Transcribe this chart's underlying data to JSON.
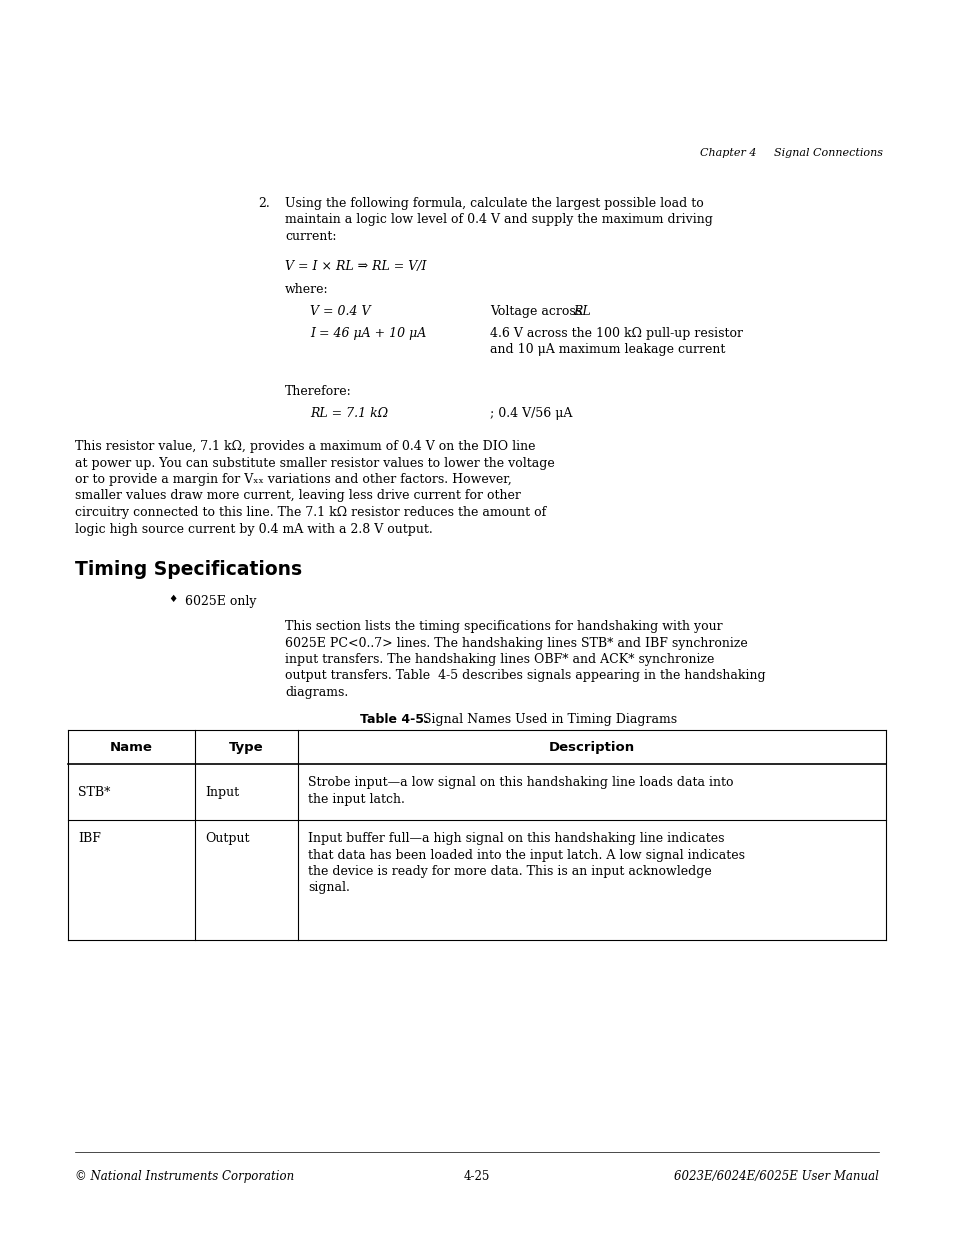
{
  "bg_color": "#ffffff",
  "page_width": 9.54,
  "page_height": 12.35,
  "dpi": 100,
  "header_text": "Chapter 4     Signal Connections",
  "footer_left": "© National Instruments Corporation",
  "footer_center": "4-25",
  "footer_right": "6023E/6024E/6025E User Manual",
  "item2_lines": [
    "Using the following formula, calculate the largest possible load to",
    "maintain a logic low level of 0.4 V and supply the maximum driving",
    "current:"
  ],
  "formula_text": "V = I × RL ⇒ RL = V/I",
  "where_text": "where:",
  "var1_label": "V = 0.4 V",
  "var1_desc": "Voltage across RL",
  "var1_desc_italic": "RL",
  "var2_label": "I = 46 μA + 10 μA",
  "var2_desc1": "4.6 V across the 100 kΩ pull-up resistor",
  "var2_desc2": "and 10 μA maximum leakage current",
  "therefore_text": "Therefore:",
  "rl_label": "RL = 7.1 kΩ",
  "rl_desc": "; 0.4 V/56 μA",
  "para2_lines": [
    "This resistor value, 7.1 kΩ, provides a maximum of 0.4 V on the DIO line",
    "at power up. You can substitute smaller resistor values to lower the voltage",
    "or to provide a margin for Vₓₓ variations and other factors. However,",
    "smaller values draw more current, leaving less drive current for other",
    "circuitry connected to this line. The 7.1 kΩ resistor reduces the amount of",
    "logic high source current by 0.4 mA with a 2.8 V output."
  ],
  "section_heading": "Timing Specifications",
  "bullet_text": "6025E only",
  "para1_lines": [
    "This section lists the timing specifications for handshaking with your",
    "6025E PC<0..7> lines. The handshaking lines STB* and IBF synchronize",
    "input transfers. The handshaking lines OBF* and ACK* synchronize",
    "output transfers. Table  4-5 describes signals appearing in the handshaking",
    "diagrams."
  ],
  "table_caption_bold": "Table 4-5.",
  "table_caption_normal": "  Signal Names Used in Timing Diagrams",
  "table_header": [
    "Name",
    "Type",
    "Description"
  ],
  "row1_name": "STB*",
  "row1_type": "Input",
  "row1_desc": [
    "Strobe input—a low signal on this handshaking line loads data into",
    "the input latch."
  ],
  "row2_name": "IBF",
  "row2_type": "Output",
  "row2_desc": [
    "Input buffer full—a high signal on this handshaking line indicates",
    "that data has been loaded into the input latch. A low signal indicates",
    "the device is ready for more data. This is an input acknowledge",
    "signal."
  ]
}
